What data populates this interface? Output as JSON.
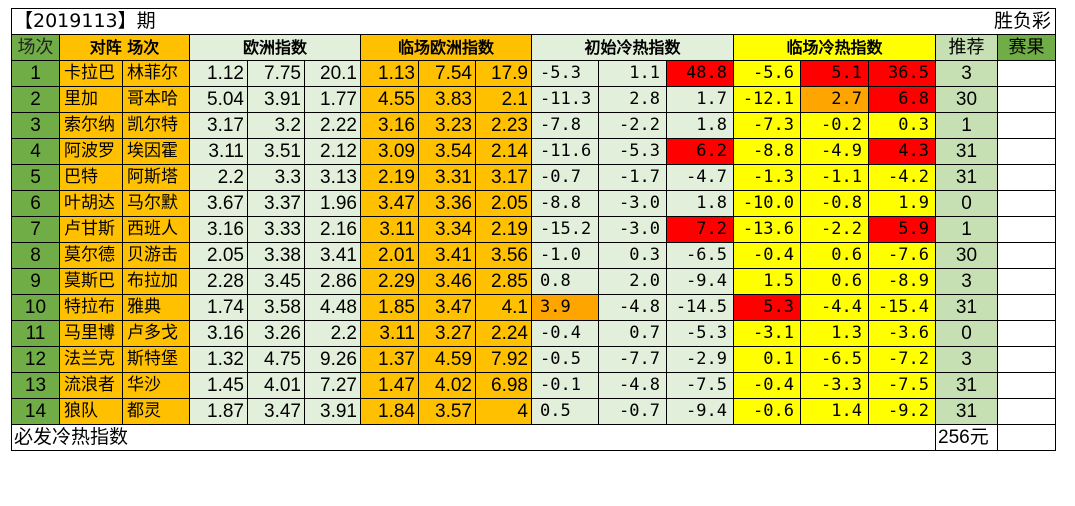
{
  "title": "【2019113】期",
  "lottery": "胜负彩",
  "headers": {
    "index": "场次",
    "matchup": "对阵 场次",
    "euro": "欧洲指数",
    "live_euro": "临场欧洲指数",
    "init_hot": "初始冷热指数",
    "live_hot": "临场冷热指数",
    "recommend": "推荐",
    "result": "赛果"
  },
  "footer": {
    "label": "必发冷热指数",
    "amount": "256元"
  },
  "colors": {
    "header_green": "#70ad47",
    "light_green": "#e2efda",
    "orange": "#ffc000",
    "yellow": "#ffff00",
    "red": "#ff0000",
    "deep_orange": "#ffa500",
    "recommend_green": "#c6e0b4"
  },
  "rows": [
    {
      "idx": "1",
      "home": "卡拉巴",
      "away": "林菲尔",
      "e1": "1.12",
      "e2": "7.75",
      "e3": "20.1",
      "l1": "1.13",
      "l2": "7.54",
      "l3": "17.9",
      "i1": "-5.3",
      "i2": "1.1",
      "i3": "48.8",
      "h1": "-5.6",
      "h2": "5.1",
      "h3": "36.5",
      "rec": "3",
      "res": "",
      "hl": [
        "",
        "",
        "red",
        "",
        "red",
        "red"
      ]
    },
    {
      "idx": "2",
      "home": "里加",
      "away": "哥本哈",
      "e1": "5.04",
      "e2": "3.91",
      "e3": "1.77",
      "l1": "4.55",
      "l2": "3.83",
      "l3": "2.1",
      "i1": "-11.3",
      "i2": "2.8",
      "i3": "1.7",
      "h1": "-12.1",
      "h2": "2.7",
      "h3": "6.8",
      "rec": "30",
      "res": "",
      "hl": [
        "",
        "",
        "",
        "",
        "org2",
        "red"
      ]
    },
    {
      "idx": "3",
      "home": "索尔纳",
      "away": "凯尔特",
      "e1": "3.17",
      "e2": "3.2",
      "e3": "2.22",
      "l1": "3.16",
      "l2": "3.23",
      "l3": "2.23",
      "i1": "-7.8",
      "i2": "-2.2",
      "i3": "1.8",
      "h1": "-7.3",
      "h2": "-0.2",
      "h3": "0.3",
      "rec": "1",
      "res": "",
      "hl": [
        "",
        "",
        "",
        "",
        "",
        ""
      ]
    },
    {
      "idx": "4",
      "home": "阿波罗",
      "away": "埃因霍",
      "e1": "3.11",
      "e2": "3.51",
      "e3": "2.12",
      "l1": "3.09",
      "l2": "3.54",
      "l3": "2.14",
      "i1": "-11.6",
      "i2": "-5.3",
      "i3": "6.2",
      "h1": "-8.8",
      "h2": "-4.9",
      "h3": "4.3",
      "rec": "31",
      "res": "",
      "hl": [
        "",
        "",
        "red",
        "",
        "",
        "red"
      ]
    },
    {
      "idx": "5",
      "home": "巴特",
      "away": "阿斯塔",
      "e1": "2.2",
      "e2": "3.3",
      "e3": "3.13",
      "l1": "2.19",
      "l2": "3.31",
      "l3": "3.17",
      "i1": "-0.7",
      "i2": "-1.7",
      "i3": "-4.7",
      "h1": "-1.3",
      "h2": "-1.1",
      "h3": "-4.2",
      "rec": "31",
      "res": "",
      "hl": [
        "",
        "",
        "",
        "",
        "",
        ""
      ]
    },
    {
      "idx": "6",
      "home": "叶胡达",
      "away": "马尔默",
      "e1": "3.67",
      "e2": "3.37",
      "e3": "1.96",
      "l1": "3.47",
      "l2": "3.36",
      "l3": "2.05",
      "i1": "-8.8",
      "i2": "-3.0",
      "i3": "1.8",
      "h1": "-10.0",
      "h2": "-0.8",
      "h3": "1.9",
      "rec": "0",
      "res": "",
      "hl": [
        "",
        "",
        "",
        "",
        "",
        ""
      ]
    },
    {
      "idx": "7",
      "home": "卢甘斯",
      "away": "西班人",
      "e1": "3.16",
      "e2": "3.33",
      "e3": "2.16",
      "l1": "3.11",
      "l2": "3.34",
      "l3": "2.19",
      "i1": "-15.2",
      "i2": "-3.0",
      "i3": "7.2",
      "h1": "-13.6",
      "h2": "-2.2",
      "h3": "5.9",
      "rec": "1",
      "res": "",
      "hl": [
        "",
        "",
        "red",
        "",
        "",
        "red"
      ]
    },
    {
      "idx": "8",
      "home": "莫尔德",
      "away": "贝游击",
      "e1": "2.05",
      "e2": "3.38",
      "e3": "3.41",
      "l1": "2.01",
      "l2": "3.41",
      "l3": "3.56",
      "i1": "-1.0",
      "i2": "0.3",
      "i3": "-6.5",
      "h1": "-0.4",
      "h2": "0.6",
      "h3": "-7.6",
      "rec": "30",
      "res": "",
      "hl": [
        "",
        "",
        "",
        "",
        "",
        ""
      ]
    },
    {
      "idx": "9",
      "home": "莫斯巴",
      "away": "布拉加",
      "e1": "2.28",
      "e2": "3.45",
      "e3": "2.86",
      "l1": "2.29",
      "l2": "3.46",
      "l3": "2.85",
      "i1": "0.8",
      "i2": "2.0",
      "i3": "-9.4",
      "h1": "1.5",
      "h2": "0.6",
      "h3": "-8.9",
      "rec": "3",
      "res": "",
      "hl": [
        "",
        "",
        "",
        "",
        "",
        ""
      ]
    },
    {
      "idx": "10",
      "home": "特拉布",
      "away": "雅典",
      "e1": "1.74",
      "e2": "3.58",
      "e3": "4.48",
      "l1": "1.85",
      "l2": "3.47",
      "l3": "4.1",
      "i1": "3.9",
      "i2": "-4.8",
      "i3": "-14.5",
      "h1": "5.3",
      "h2": "-4.4",
      "h3": "-15.4",
      "rec": "31",
      "res": "",
      "hl": [
        "org2",
        "",
        "",
        "red",
        "",
        ""
      ]
    },
    {
      "idx": "11",
      "home": "马里博",
      "away": "卢多戈",
      "e1": "3.16",
      "e2": "3.26",
      "e3": "2.2",
      "l1": "3.11",
      "l2": "3.27",
      "l3": "2.24",
      "i1": "-0.4",
      "i2": "0.7",
      "i3": "-5.3",
      "h1": "-3.1",
      "h2": "1.3",
      "h3": "-3.6",
      "rec": "0",
      "res": "",
      "hl": [
        "",
        "",
        "",
        "",
        "",
        ""
      ]
    },
    {
      "idx": "12",
      "home": "法兰克",
      "away": "斯特堡",
      "e1": "1.32",
      "e2": "4.75",
      "e3": "9.26",
      "l1": "1.37",
      "l2": "4.59",
      "l3": "7.92",
      "i1": "-0.5",
      "i2": "-7.7",
      "i3": "-2.9",
      "h1": "0.1",
      "h2": "-6.5",
      "h3": "-7.2",
      "rec": "3",
      "res": "",
      "hl": [
        "",
        "",
        "",
        "",
        "",
        ""
      ]
    },
    {
      "idx": "13",
      "home": "流浪者",
      "away": "华沙",
      "e1": "1.45",
      "e2": "4.01",
      "e3": "7.27",
      "l1": "1.47",
      "l2": "4.02",
      "l3": "6.98",
      "i1": "-0.1",
      "i2": "-4.8",
      "i3": "-7.5",
      "h1": "-0.4",
      "h2": "-3.3",
      "h3": "-7.5",
      "rec": "31",
      "res": "",
      "hl": [
        "",
        "",
        "",
        "",
        "",
        ""
      ]
    },
    {
      "idx": "14",
      "home": "狼队",
      "away": "都灵",
      "e1": "1.87",
      "e2": "3.47",
      "e3": "3.91",
      "l1": "1.84",
      "l2": "3.57",
      "l3": "4",
      "i1": "0.5",
      "i2": "-0.7",
      "i3": "-9.4",
      "h1": "-0.6",
      "h2": "1.4",
      "h3": "-9.2",
      "rec": "31",
      "res": "",
      "hl": [
        "",
        "",
        "",
        "",
        "",
        ""
      ]
    }
  ]
}
